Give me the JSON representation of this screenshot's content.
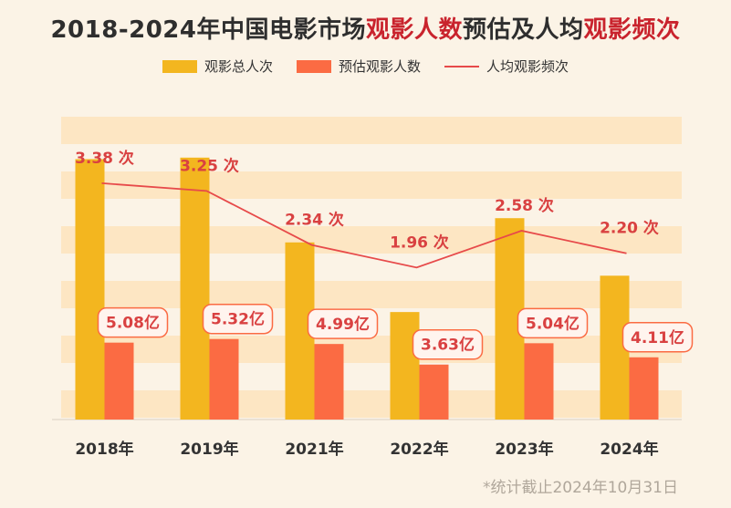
{
  "title": {
    "part1": "2018-2024年中国电影市场",
    "part2": "观影人数",
    "part3": "预估及人均",
    "part4": "观影频次"
  },
  "colors": {
    "total_bar": "#f3b61f",
    "estimate_bar": "#fb6b43",
    "line": "#e74a4a",
    "label_red": "#d94141",
    "title_highlight": "#c9232d",
    "stripe": "#fde6c3"
  },
  "legend": [
    {
      "label": "观影总人次",
      "kind": "bar",
      "color": "#f3b61f"
    },
    {
      "label": "预估观影人数",
      "kind": "bar",
      "color": "#fb6b43"
    },
    {
      "label": "人均观影频次",
      "kind": "line",
      "color": "#e74a4a"
    }
  ],
  "chart_data": {
    "type": "bar",
    "categories": [
      "2018年",
      "2019年",
      "2021年",
      "2022年",
      "2023年",
      "2024年"
    ],
    "series": [
      {
        "name": "观影总人次",
        "type": "bar",
        "values": [
          17.2,
          17.3,
          11.7,
          7.1,
          13.3,
          9.5
        ]
      },
      {
        "name": "预估观影人数",
        "type": "bar",
        "values": [
          5.08,
          5.32,
          4.99,
          3.63,
          5.04,
          4.11
        ],
        "labels": [
          "5.08亿",
          "5.32亿",
          "4.99亿",
          "3.63亿",
          "5.04亿",
          "4.11亿"
        ]
      },
      {
        "name": "人均观影频次",
        "type": "line",
        "values": [
          3.38,
          3.25,
          2.34,
          1.96,
          2.58,
          2.2
        ],
        "labels": [
          "3.38 次",
          "3.25 次",
          "2.34 次",
          "1.96 次",
          "2.58 次",
          "2.20 次"
        ]
      }
    ],
    "bar_axis": {
      "min": 0,
      "max": 20
    },
    "line_axis": {
      "min": -0.6,
      "max": 4.5
    },
    "grid": false
  },
  "note": "*统计截止2024年10月31日"
}
